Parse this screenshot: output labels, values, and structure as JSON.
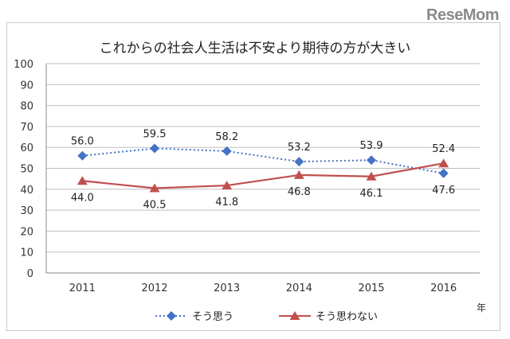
{
  "watermark": "ReseMom",
  "chart_data": {
    "type": "line",
    "title": "これからの社会人生活は不安より期待の方が大きい",
    "x": [
      "2011",
      "2012",
      "2013",
      "2014",
      "2015",
      "2016"
    ],
    "xunit": "年",
    "ylim": [
      0,
      100
    ],
    "yticks": [
      0,
      10,
      20,
      30,
      40,
      50,
      60,
      70,
      80,
      90,
      100
    ],
    "grid": true,
    "legend": "bottom",
    "series": [
      {
        "name": "そう思う",
        "values": [
          56.0,
          59.5,
          58.2,
          53.2,
          53.9,
          47.6
        ],
        "labels": [
          "56.0",
          "59.5",
          "58.2",
          "53.2",
          "53.9",
          "47.6"
        ],
        "color": "#4472c4",
        "line_style": "dotted",
        "marker": "diamond"
      },
      {
        "name": "そう思わない",
        "values": [
          44.0,
          40.5,
          41.8,
          46.8,
          46.1,
          52.4
        ],
        "labels": [
          "44.0",
          "40.5",
          "41.8",
          "46.8",
          "46.1",
          "52.4"
        ],
        "color": "#c0504d",
        "line_style": "solid",
        "marker": "triangle"
      }
    ]
  }
}
